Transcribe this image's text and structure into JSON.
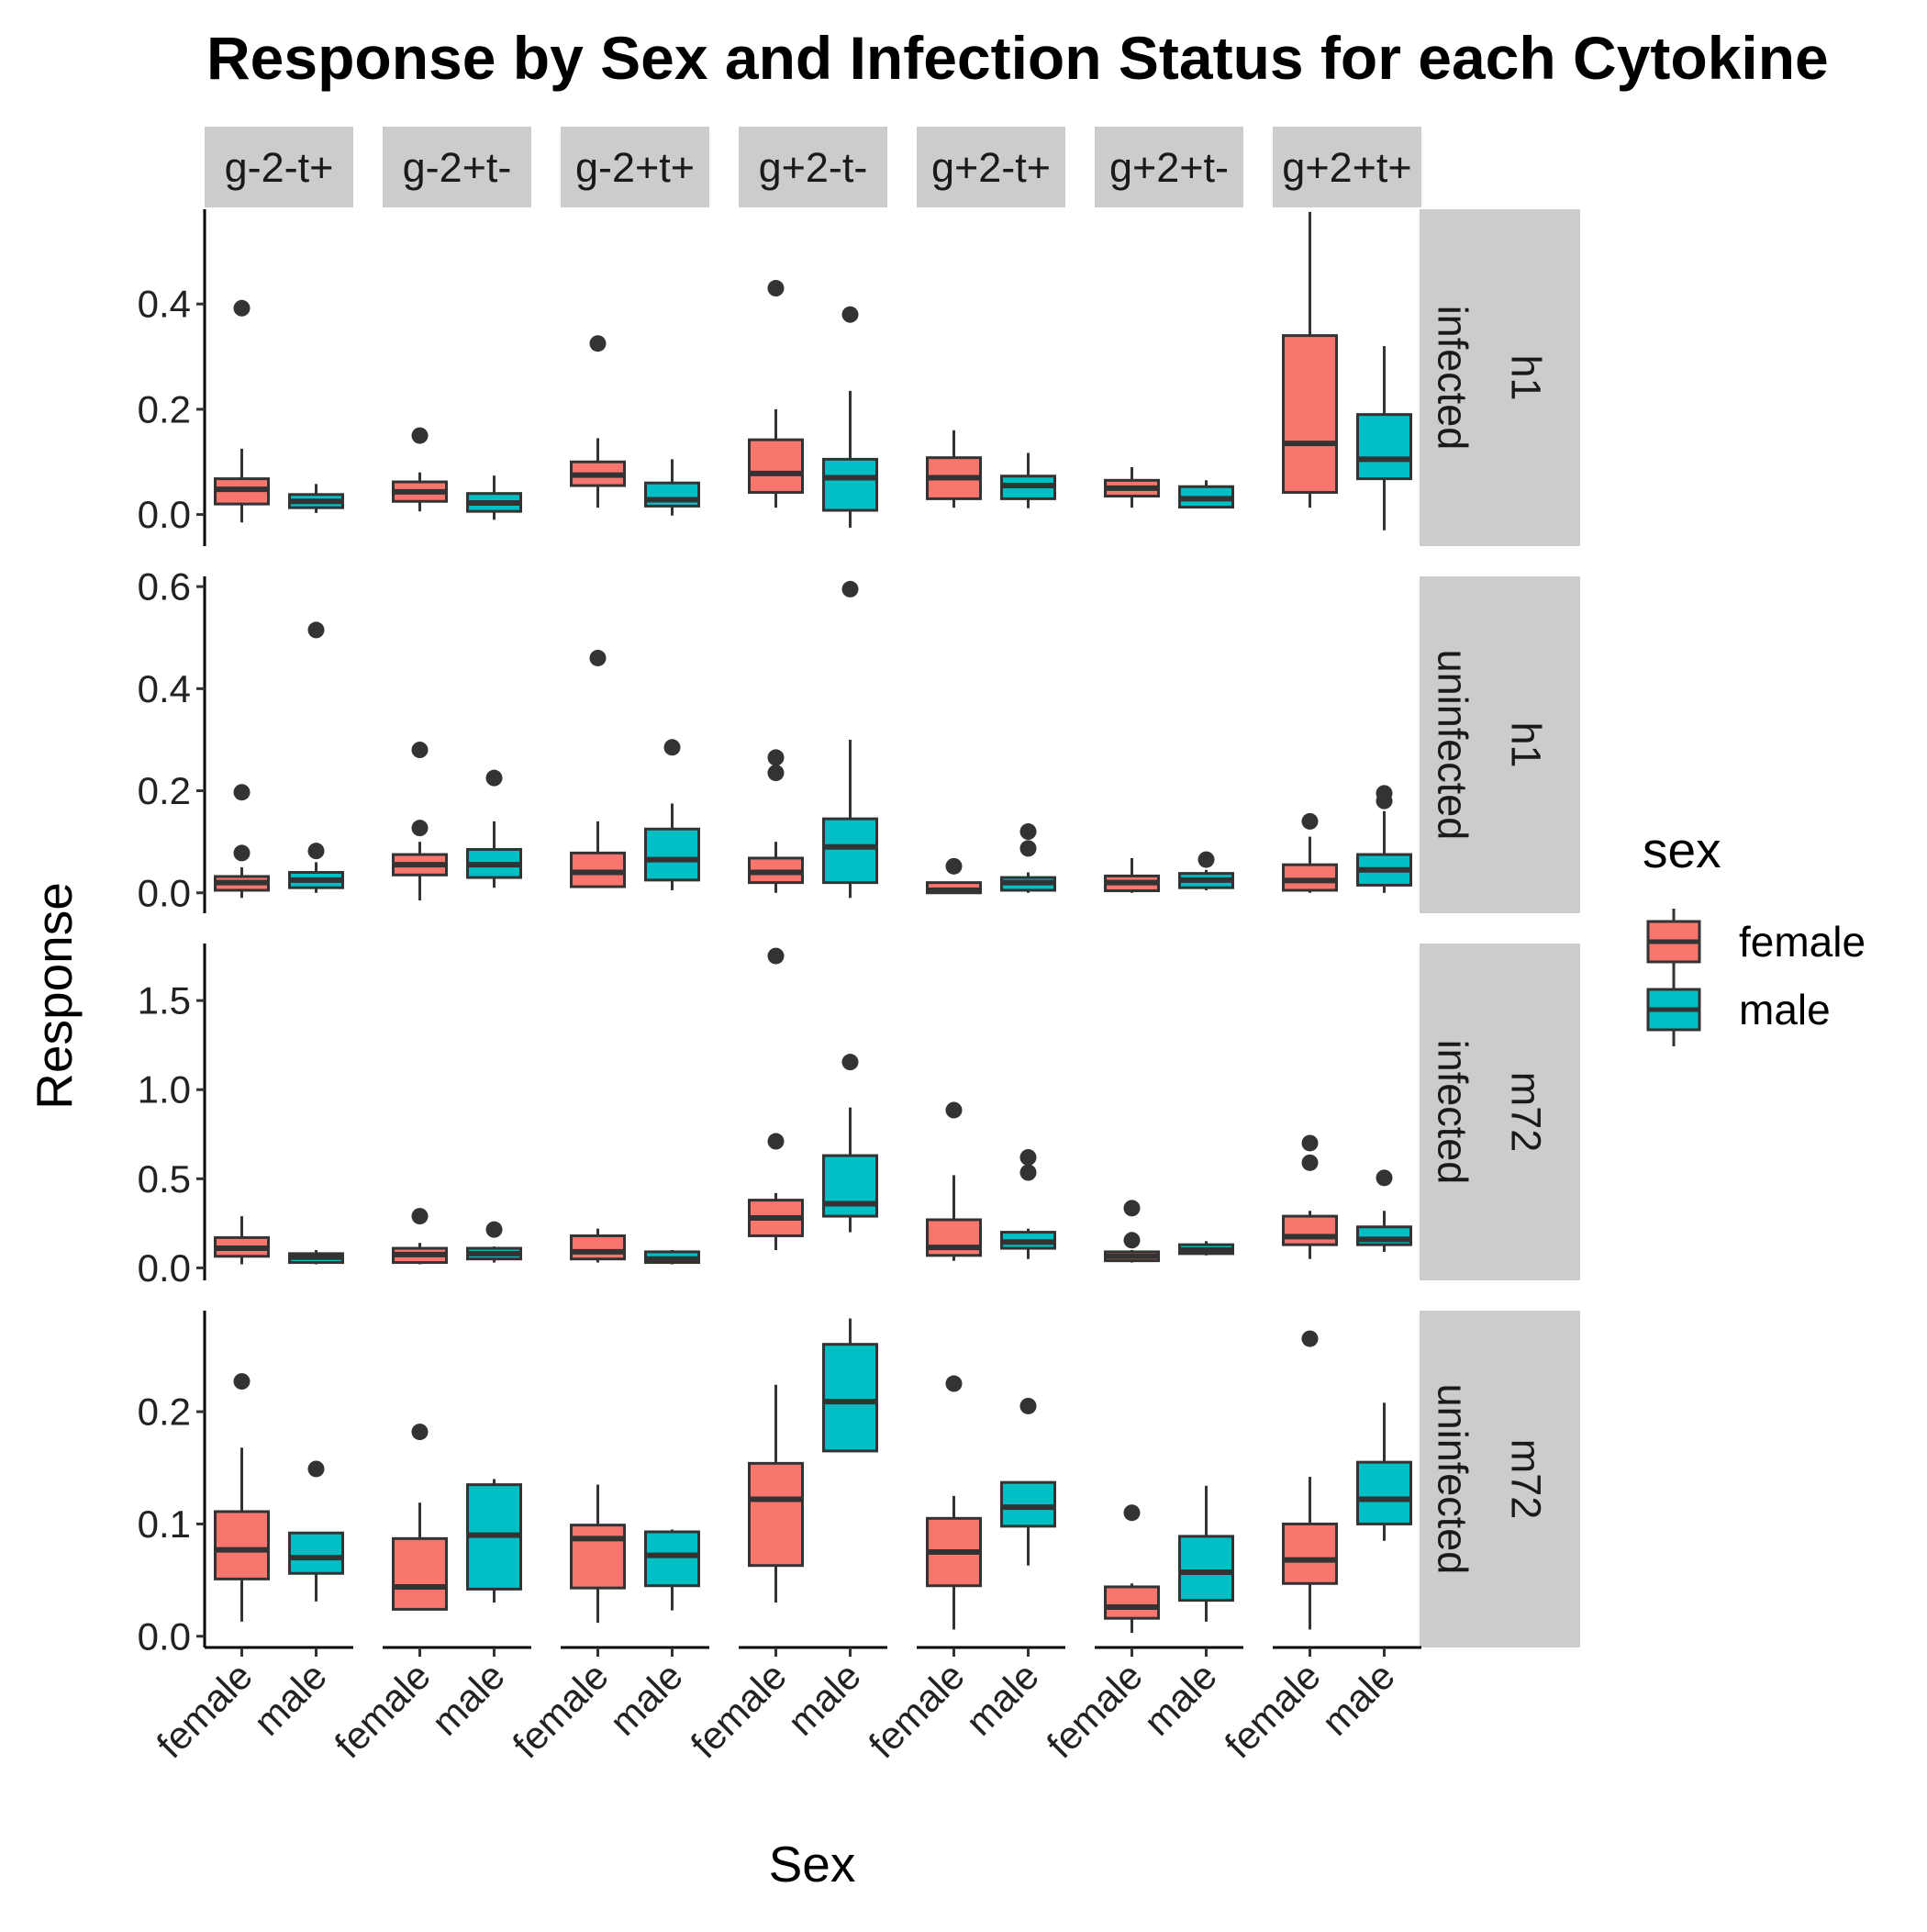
{
  "chart_data": {
    "type": "boxplot",
    "title": "Response by Sex and Infection Status for each Cytokine",
    "xlabel": "Sex",
    "ylabel": "Response",
    "categories": [
      "female",
      "male"
    ],
    "cytokine_groups": [
      "g-2-t+",
      "g-2+t-",
      "g-2+t+",
      "g+2-t-",
      "g+2-t+",
      "g+2+t-",
      "g+2+t+"
    ],
    "rows": [
      {
        "time": "h1",
        "status": "infected",
        "ylim": [
          -0.06,
          0.58
        ],
        "yticks": [
          0.0,
          0.2,
          0.4
        ],
        "yticklabels": [
          "0.0",
          "0.2",
          "0.4"
        ]
      },
      {
        "time": "h1",
        "status": "uninfected",
        "ylim": [
          -0.04,
          0.62
        ],
        "yticks": [
          0.0,
          0.2,
          0.4,
          0.6
        ],
        "yticklabels": [
          "0.0",
          "0.2",
          "0.4",
          "0.6"
        ]
      },
      {
        "time": "m72",
        "status": "infected",
        "ylim": [
          -0.07,
          1.82
        ],
        "yticks": [
          0.0,
          0.5,
          1.0,
          1.5
        ],
        "yticklabels": [
          "0.0",
          "0.5",
          "1.0",
          "1.5"
        ]
      },
      {
        "time": "m72",
        "status": "uninfected",
        "ylim": [
          -0.01,
          0.29
        ],
        "yticks": [
          0.0,
          0.1,
          0.2
        ],
        "yticklabels": [
          "0.0",
          "0.1",
          "0.2"
        ]
      }
    ],
    "legend": {
      "title": "sex",
      "position": "right",
      "items": [
        {
          "label": "female",
          "color": "#F8766D"
        },
        {
          "label": "male",
          "color": "#00BFC4"
        }
      ]
    },
    "series": [
      {
        "name": "female",
        "color": "#F8766D",
        "values": [
          [
            {
              "min": -0.015,
              "q1": 0.02,
              "median": 0.048,
              "q3": 0.068,
              "max": 0.125,
              "outliers": [
                0.392
              ]
            },
            {
              "min": 0.006,
              "q1": 0.025,
              "median": 0.043,
              "q3": 0.062,
              "max": 0.08,
              "outliers": [
                0.15
              ]
            },
            {
              "min": 0.013,
              "q1": 0.055,
              "median": 0.075,
              "q3": 0.1,
              "max": 0.145,
              "outliers": [
                0.325
              ]
            },
            {
              "min": 0.013,
              "q1": 0.042,
              "median": 0.078,
              "q3": 0.142,
              "max": 0.2,
              "outliers": [
                0.43
              ]
            },
            {
              "min": 0.013,
              "q1": 0.03,
              "median": 0.07,
              "q3": 0.108,
              "max": 0.16,
              "outliers": []
            },
            {
              "min": 0.013,
              "q1": 0.035,
              "median": 0.05,
              "q3": 0.065,
              "max": 0.09,
              "outliers": []
            },
            {
              "min": 0.013,
              "q1": 0.042,
              "median": 0.135,
              "q3": 0.34,
              "max": 0.575,
              "outliers": []
            }
          ],
          [
            {
              "min": -0.01,
              "q1": 0.005,
              "median": 0.02,
              "q3": 0.032,
              "max": 0.05,
              "outliers": [
                0.078,
                0.197
              ]
            },
            {
              "min": -0.015,
              "q1": 0.035,
              "median": 0.055,
              "q3": 0.075,
              "max": 0.1,
              "outliers": [
                0.127,
                0.28
              ]
            },
            {
              "min": 0.01,
              "q1": 0.012,
              "median": 0.04,
              "q3": 0.078,
              "max": 0.14,
              "outliers": [
                0.46
              ]
            },
            {
              "min": 0.0,
              "q1": 0.02,
              "median": 0.04,
              "q3": 0.068,
              "max": 0.1,
              "outliers": [
                0.235,
                0.265
              ]
            },
            {
              "min": 0.0,
              "q1": 0.0,
              "median": 0.005,
              "q3": 0.02,
              "max": 0.02,
              "outliers": [
                0.052
              ]
            },
            {
              "min": 0.0,
              "q1": 0.004,
              "median": 0.02,
              "q3": 0.033,
              "max": 0.068,
              "outliers": []
            },
            {
              "min": 0.0,
              "q1": 0.005,
              "median": 0.024,
              "q3": 0.055,
              "max": 0.11,
              "outliers": [
                0.14
              ]
            }
          ],
          [
            {
              "min": 0.02,
              "q1": 0.065,
              "median": 0.11,
              "q3": 0.17,
              "max": 0.29,
              "outliers": []
            },
            {
              "min": 0.02,
              "q1": 0.03,
              "median": 0.075,
              "q3": 0.11,
              "max": 0.14,
              "outliers": [
                0.29
              ]
            },
            {
              "min": 0.03,
              "q1": 0.05,
              "median": 0.09,
              "q3": 0.18,
              "max": 0.22,
              "outliers": []
            },
            {
              "min": 0.1,
              "q1": 0.18,
              "median": 0.28,
              "q3": 0.38,
              "max": 0.42,
              "outliers": [
                0.71,
                1.75
              ]
            },
            {
              "min": 0.04,
              "q1": 0.07,
              "median": 0.115,
              "q3": 0.27,
              "max": 0.52,
              "outliers": [
                0.885
              ]
            },
            {
              "min": 0.03,
              "q1": 0.04,
              "median": 0.065,
              "q3": 0.09,
              "max": 0.1,
              "outliers": [
                0.155,
                0.335
              ]
            },
            {
              "min": 0.05,
              "q1": 0.13,
              "median": 0.175,
              "q3": 0.29,
              "max": 0.32,
              "outliers": [
                0.59,
                0.7
              ]
            }
          ],
          [
            {
              "min": 0.013,
              "q1": 0.051,
              "median": 0.077,
              "q3": 0.111,
              "max": 0.168,
              "outliers": [
                0.227
              ]
            },
            {
              "min": 0.024,
              "q1": 0.024,
              "median": 0.044,
              "q3": 0.087,
              "max": 0.119,
              "outliers": [
                0.182
              ]
            },
            {
              "min": 0.012,
              "q1": 0.043,
              "median": 0.087,
              "q3": 0.099,
              "max": 0.135,
              "outliers": []
            },
            {
              "min": 0.03,
              "q1": 0.063,
              "median": 0.122,
              "q3": 0.154,
              "max": 0.224,
              "outliers": []
            },
            {
              "min": 0.006,
              "q1": 0.045,
              "median": 0.075,
              "q3": 0.105,
              "max": 0.125,
              "outliers": [
                0.225
              ]
            },
            {
              "min": 0.003,
              "q1": 0.016,
              "median": 0.026,
              "q3": 0.044,
              "max": 0.047,
              "outliers": [
                0.11
              ]
            },
            {
              "min": 0.006,
              "q1": 0.047,
              "median": 0.068,
              "q3": 0.1,
              "max": 0.142,
              "outliers": [
                0.265
              ]
            }
          ]
        ]
      },
      {
        "name": "male",
        "color": "#00BFC4",
        "values": [
          [
            {
              "min": 0.003,
              "q1": 0.013,
              "median": 0.025,
              "q3": 0.038,
              "max": 0.058,
              "outliers": []
            },
            {
              "min": -0.01,
              "q1": 0.006,
              "median": 0.022,
              "q3": 0.04,
              "max": 0.074,
              "outliers": []
            },
            {
              "min": -0.002,
              "q1": 0.016,
              "median": 0.028,
              "q3": 0.06,
              "max": 0.105,
              "outliers": []
            },
            {
              "min": -0.025,
              "q1": 0.008,
              "median": 0.07,
              "q3": 0.105,
              "max": 0.235,
              "outliers": [
                0.38
              ]
            },
            {
              "min": 0.012,
              "q1": 0.03,
              "median": 0.055,
              "q3": 0.073,
              "max": 0.117,
              "outliers": []
            },
            {
              "min": 0.012,
              "q1": 0.014,
              "median": 0.03,
              "q3": 0.053,
              "max": 0.065,
              "outliers": []
            },
            {
              "min": -0.03,
              "q1": 0.068,
              "median": 0.105,
              "q3": 0.19,
              "max": 0.32,
              "outliers": []
            }
          ],
          [
            {
              "min": 0.0,
              "q1": 0.01,
              "median": 0.025,
              "q3": 0.04,
              "max": 0.06,
              "outliers": [
                0.082,
                0.515
              ]
            },
            {
              "min": 0.01,
              "q1": 0.03,
              "median": 0.055,
              "q3": 0.085,
              "max": 0.14,
              "outliers": [
                0.225
              ]
            },
            {
              "min": 0.005,
              "q1": 0.025,
              "median": 0.065,
              "q3": 0.125,
              "max": 0.175,
              "outliers": [
                0.285
              ]
            },
            {
              "min": -0.01,
              "q1": 0.02,
              "median": 0.09,
              "q3": 0.145,
              "max": 0.3,
              "outliers": [
                0.595
              ]
            },
            {
              "min": 0.0,
              "q1": 0.005,
              "median": 0.02,
              "q3": 0.03,
              "max": 0.04,
              "outliers": [
                0.087,
                0.12
              ]
            },
            {
              "min": 0.005,
              "q1": 0.01,
              "median": 0.025,
              "q3": 0.038,
              "max": 0.045,
              "outliers": [
                0.065
              ]
            },
            {
              "min": 0.0,
              "q1": 0.015,
              "median": 0.045,
              "q3": 0.075,
              "max": 0.16,
              "outliers": [
                0.18,
                0.195
              ]
            }
          ],
          [
            {
              "min": 0.02,
              "q1": 0.03,
              "median": 0.06,
              "q3": 0.08,
              "max": 0.1,
              "outliers": []
            },
            {
              "min": 0.03,
              "q1": 0.05,
              "median": 0.08,
              "q3": 0.11,
              "max": 0.12,
              "outliers": [
                0.215
              ]
            },
            {
              "min": 0.02,
              "q1": 0.03,
              "median": 0.05,
              "q3": 0.09,
              "max": 0.1,
              "outliers": []
            },
            {
              "min": 0.2,
              "q1": 0.29,
              "median": 0.36,
              "q3": 0.63,
              "max": 0.9,
              "outliers": [
                1.155
              ]
            },
            {
              "min": 0.05,
              "q1": 0.11,
              "median": 0.145,
              "q3": 0.2,
              "max": 0.22,
              "outliers": [
                0.535,
                0.62
              ]
            },
            {
              "min": 0.07,
              "q1": 0.08,
              "median": 0.1,
              "q3": 0.13,
              "max": 0.15,
              "outliers": []
            },
            {
              "min": 0.09,
              "q1": 0.13,
              "median": 0.16,
              "q3": 0.23,
              "max": 0.32,
              "outliers": [
                0.505
              ]
            }
          ],
          [
            {
              "min": 0.031,
              "q1": 0.056,
              "median": 0.07,
              "q3": 0.092,
              "max": 0.092,
              "outliers": [
                0.149
              ]
            },
            {
              "min": 0.03,
              "q1": 0.042,
              "median": 0.09,
              "q3": 0.135,
              "max": 0.14,
              "outliers": []
            },
            {
              "min": 0.023,
              "q1": 0.045,
              "median": 0.072,
              "q3": 0.093,
              "max": 0.095,
              "outliers": []
            },
            {
              "min": 0.165,
              "q1": 0.165,
              "median": 0.209,
              "q3": 0.26,
              "max": 0.283,
              "outliers": []
            },
            {
              "min": 0.063,
              "q1": 0.098,
              "median": 0.115,
              "q3": 0.137,
              "max": 0.137,
              "outliers": [
                0.205
              ]
            },
            {
              "min": 0.013,
              "q1": 0.032,
              "median": 0.057,
              "q3": 0.089,
              "max": 0.134,
              "outliers": []
            },
            {
              "min": 0.085,
              "q1": 0.1,
              "median": 0.122,
              "q3": 0.155,
              "max": 0.208,
              "outliers": []
            }
          ]
        ]
      }
    ]
  }
}
